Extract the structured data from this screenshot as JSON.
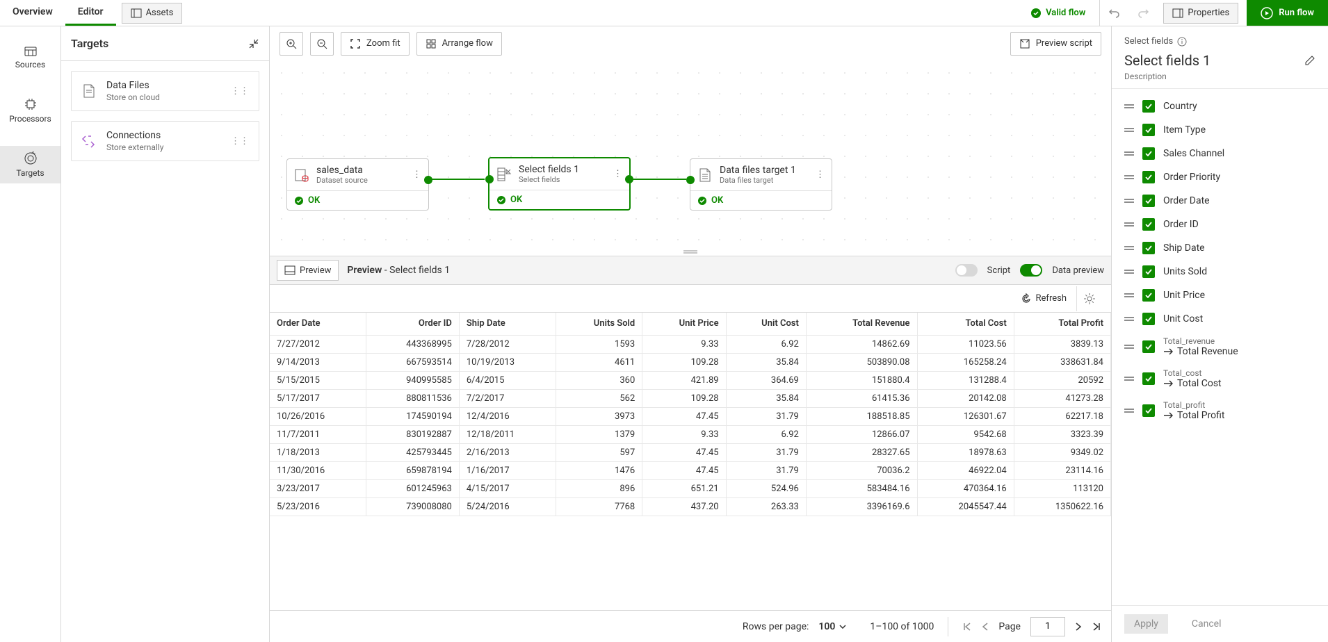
{
  "tabs": {
    "overview": "Overview",
    "editor": "Editor",
    "assets": "Assets"
  },
  "status": {
    "valid": "Valid flow"
  },
  "buttons": {
    "properties": "Properties",
    "run": "Run flow",
    "zoom_fit": "Zoom fit",
    "arrange": "Arrange flow",
    "preview_script": "Preview script",
    "preview": "Preview",
    "refresh": "Refresh",
    "apply": "Apply",
    "cancel": "Cancel"
  },
  "rail": {
    "sources": "Sources",
    "processors": "Processors",
    "targets": "Targets"
  },
  "targets_panel": {
    "title": "Targets",
    "cards": [
      {
        "title": "Data Files",
        "subtitle": "Store on cloud"
      },
      {
        "title": "Connections",
        "subtitle": "Store externally"
      }
    ]
  },
  "flow": {
    "nodes": [
      {
        "title": "sales_data",
        "subtitle": "Dataset source",
        "status": "OK"
      },
      {
        "title": "Select fields 1",
        "subtitle": "Select fields",
        "status": "OK"
      },
      {
        "title": "Data files target 1",
        "subtitle": "Data files target",
        "status": "OK"
      }
    ]
  },
  "preview": {
    "label_prefix": "Preview",
    "label_suffix": " - Select fields 1",
    "script_label": "Script",
    "data_preview_label": "Data preview"
  },
  "pagination": {
    "rows_per_page_label": "Rows per page:",
    "rows_per_page_value": "100",
    "range": "1–100 of 1000",
    "page_label": "Page",
    "page_value": "1"
  },
  "right_panel": {
    "bc": "Select fields",
    "title": "Select fields 1",
    "desc": "Description",
    "fields": [
      {
        "label": "Country"
      },
      {
        "label": "Item Type"
      },
      {
        "label": "Sales Channel"
      },
      {
        "label": "Order Priority"
      },
      {
        "label": "Order Date"
      },
      {
        "label": "Order ID"
      },
      {
        "label": "Ship Date"
      },
      {
        "label": "Units Sold"
      },
      {
        "label": "Unit Price"
      },
      {
        "label": "Unit Cost"
      },
      {
        "label": "Total Revenue",
        "original": "Total_revenue"
      },
      {
        "label": "Total Cost",
        "original": "Total_cost"
      },
      {
        "label": "Total Profit",
        "original": "Total_profit"
      }
    ]
  },
  "table": {
    "columns": [
      "Order Date",
      "Order ID",
      "Ship Date",
      "Units Sold",
      "Unit Price",
      "Unit Cost",
      "Total Revenue",
      "Total Cost",
      "Total Profit"
    ],
    "col_align": [
      "left",
      "right",
      "left",
      "right",
      "right",
      "right",
      "right",
      "right",
      "right"
    ],
    "rows": [
      [
        "7/27/2012",
        "443368995",
        "7/28/2012",
        "1593",
        "9.33",
        "6.92",
        "14862.69",
        "11023.56",
        "3839.13"
      ],
      [
        "9/14/2013",
        "667593514",
        "10/19/2013",
        "4611",
        "109.28",
        "35.84",
        "503890.08",
        "165258.24",
        "338631.84"
      ],
      [
        "5/15/2015",
        "940995585",
        "6/4/2015",
        "360",
        "421.89",
        "364.69",
        "151880.4",
        "131288.4",
        "20592"
      ],
      [
        "5/17/2017",
        "880811536",
        "7/2/2017",
        "562",
        "109.28",
        "35.84",
        "61415.36",
        "20142.08",
        "41273.28"
      ],
      [
        "10/26/2016",
        "174590194",
        "12/4/2016",
        "3973",
        "47.45",
        "31.79",
        "188518.85",
        "126301.67",
        "62217.18"
      ],
      [
        "11/7/2011",
        "830192887",
        "12/18/2011",
        "1379",
        "9.33",
        "6.92",
        "12866.07",
        "9542.68",
        "3323.39"
      ],
      [
        "1/18/2013",
        "425793445",
        "2/16/2013",
        "597",
        "47.45",
        "31.79",
        "28327.65",
        "18978.63",
        "9349.02"
      ],
      [
        "11/30/2016",
        "659878194",
        "1/16/2017",
        "1476",
        "47.45",
        "31.79",
        "70036.2",
        "46922.04",
        "23114.16"
      ],
      [
        "3/23/2017",
        "601245963",
        "4/15/2017",
        "896",
        "651.21",
        "524.96",
        "583484.16",
        "470364.16",
        "113120"
      ],
      [
        "5/23/2016",
        "739008080",
        "5/24/2016",
        "7768",
        "437.20",
        "263.33",
        "3396169.6",
        "2045547.44",
        "1350622.16"
      ]
    ]
  },
  "colors": {
    "accent": "#0e8a00"
  }
}
